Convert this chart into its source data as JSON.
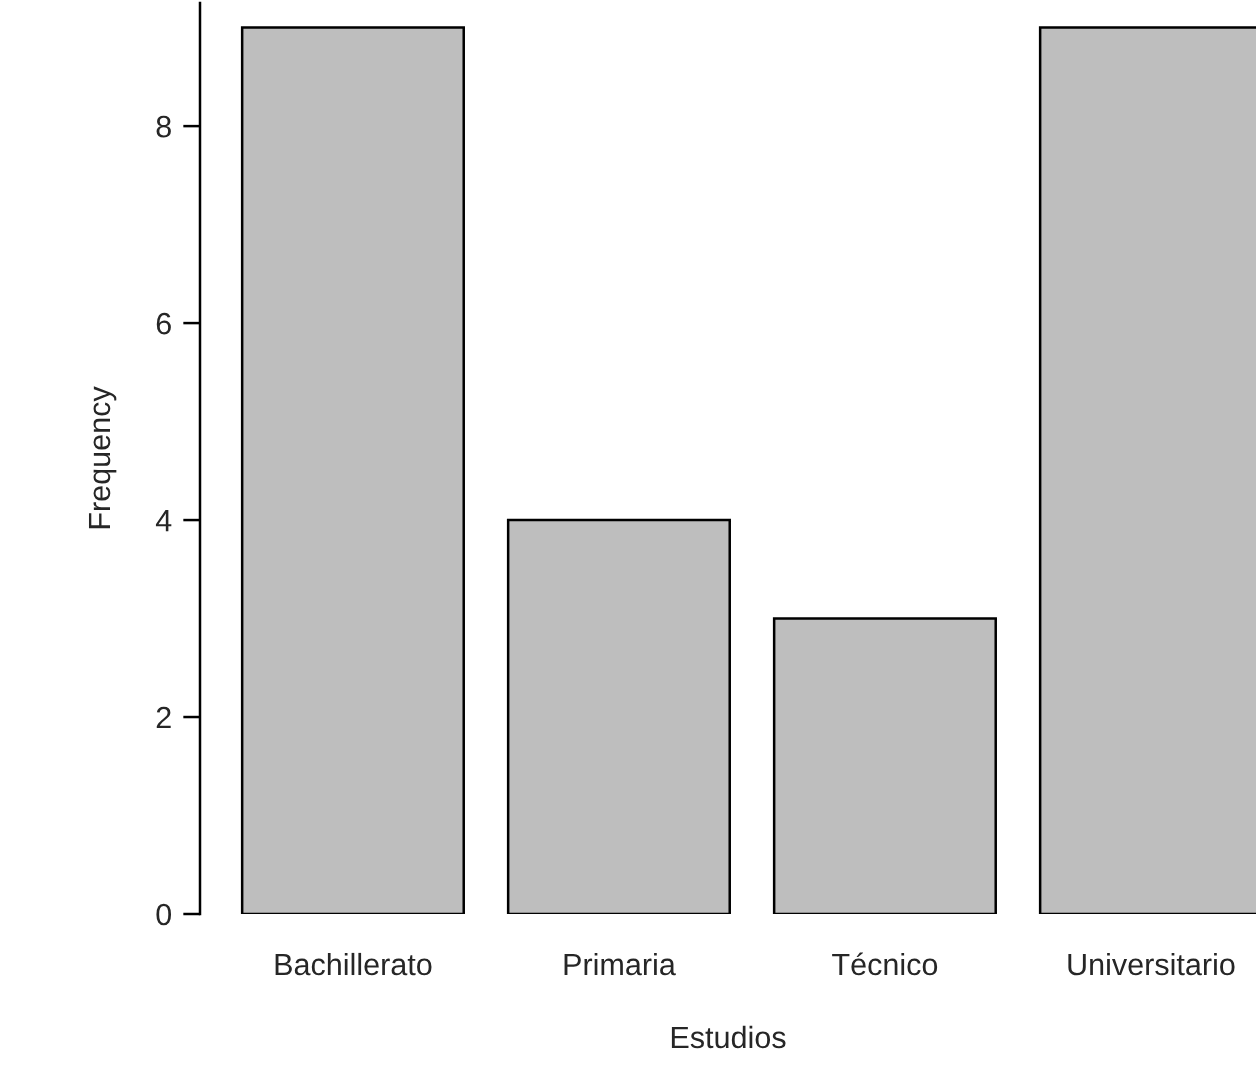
{
  "chart_data": {
    "type": "bar",
    "xlabel": "Estudios",
    "ylabel": "Frequency",
    "categories": [
      "Bachillerato",
      "Primaria",
      "Técnico",
      "Universitario"
    ],
    "values": [
      9,
      4,
      3,
      9
    ],
    "color": "#bebebe",
    "ylim": [
      0,
      9.25
    ],
    "yticks": [
      0,
      2,
      4,
      6,
      8
    ],
    "grid": false,
    "legend": false
  }
}
